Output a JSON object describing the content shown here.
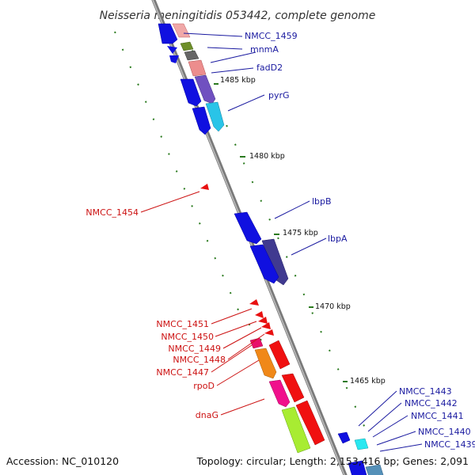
{
  "title": "Neisseria meningitidis 053442, complete genome",
  "footer": {
    "accession": "Accession: NC_010120",
    "topology": "Topology: circular; Length: 2,153,416 bp; Genes: 2,091"
  },
  "colors": {
    "forward_label": "#1a1aa0",
    "reverse_label": "#cc1111",
    "backbone": "#888888",
    "tick": "#2a7a1e"
  },
  "kbp_ticks": [
    "1485 kbp",
    "1480 kbp",
    "1475 kbp",
    "1470 kbp",
    "1465 kbp"
  ],
  "forward_labels": [
    "NMCC_1459",
    "mnmA",
    "fadD2",
    "pyrG",
    "lbpB",
    "lbpA",
    "NMCC_1443",
    "NMCC_1442",
    "NMCC_1441",
    "NMCC_1440",
    "NMCC_1439"
  ],
  "reverse_labels": [
    "NMCC_1454",
    "NMCC_1451",
    "NMCC_1450",
    "NMCC_1449",
    "NMCC_1448",
    "NMCC_1447",
    "rpoD",
    "dnaG"
  ]
}
